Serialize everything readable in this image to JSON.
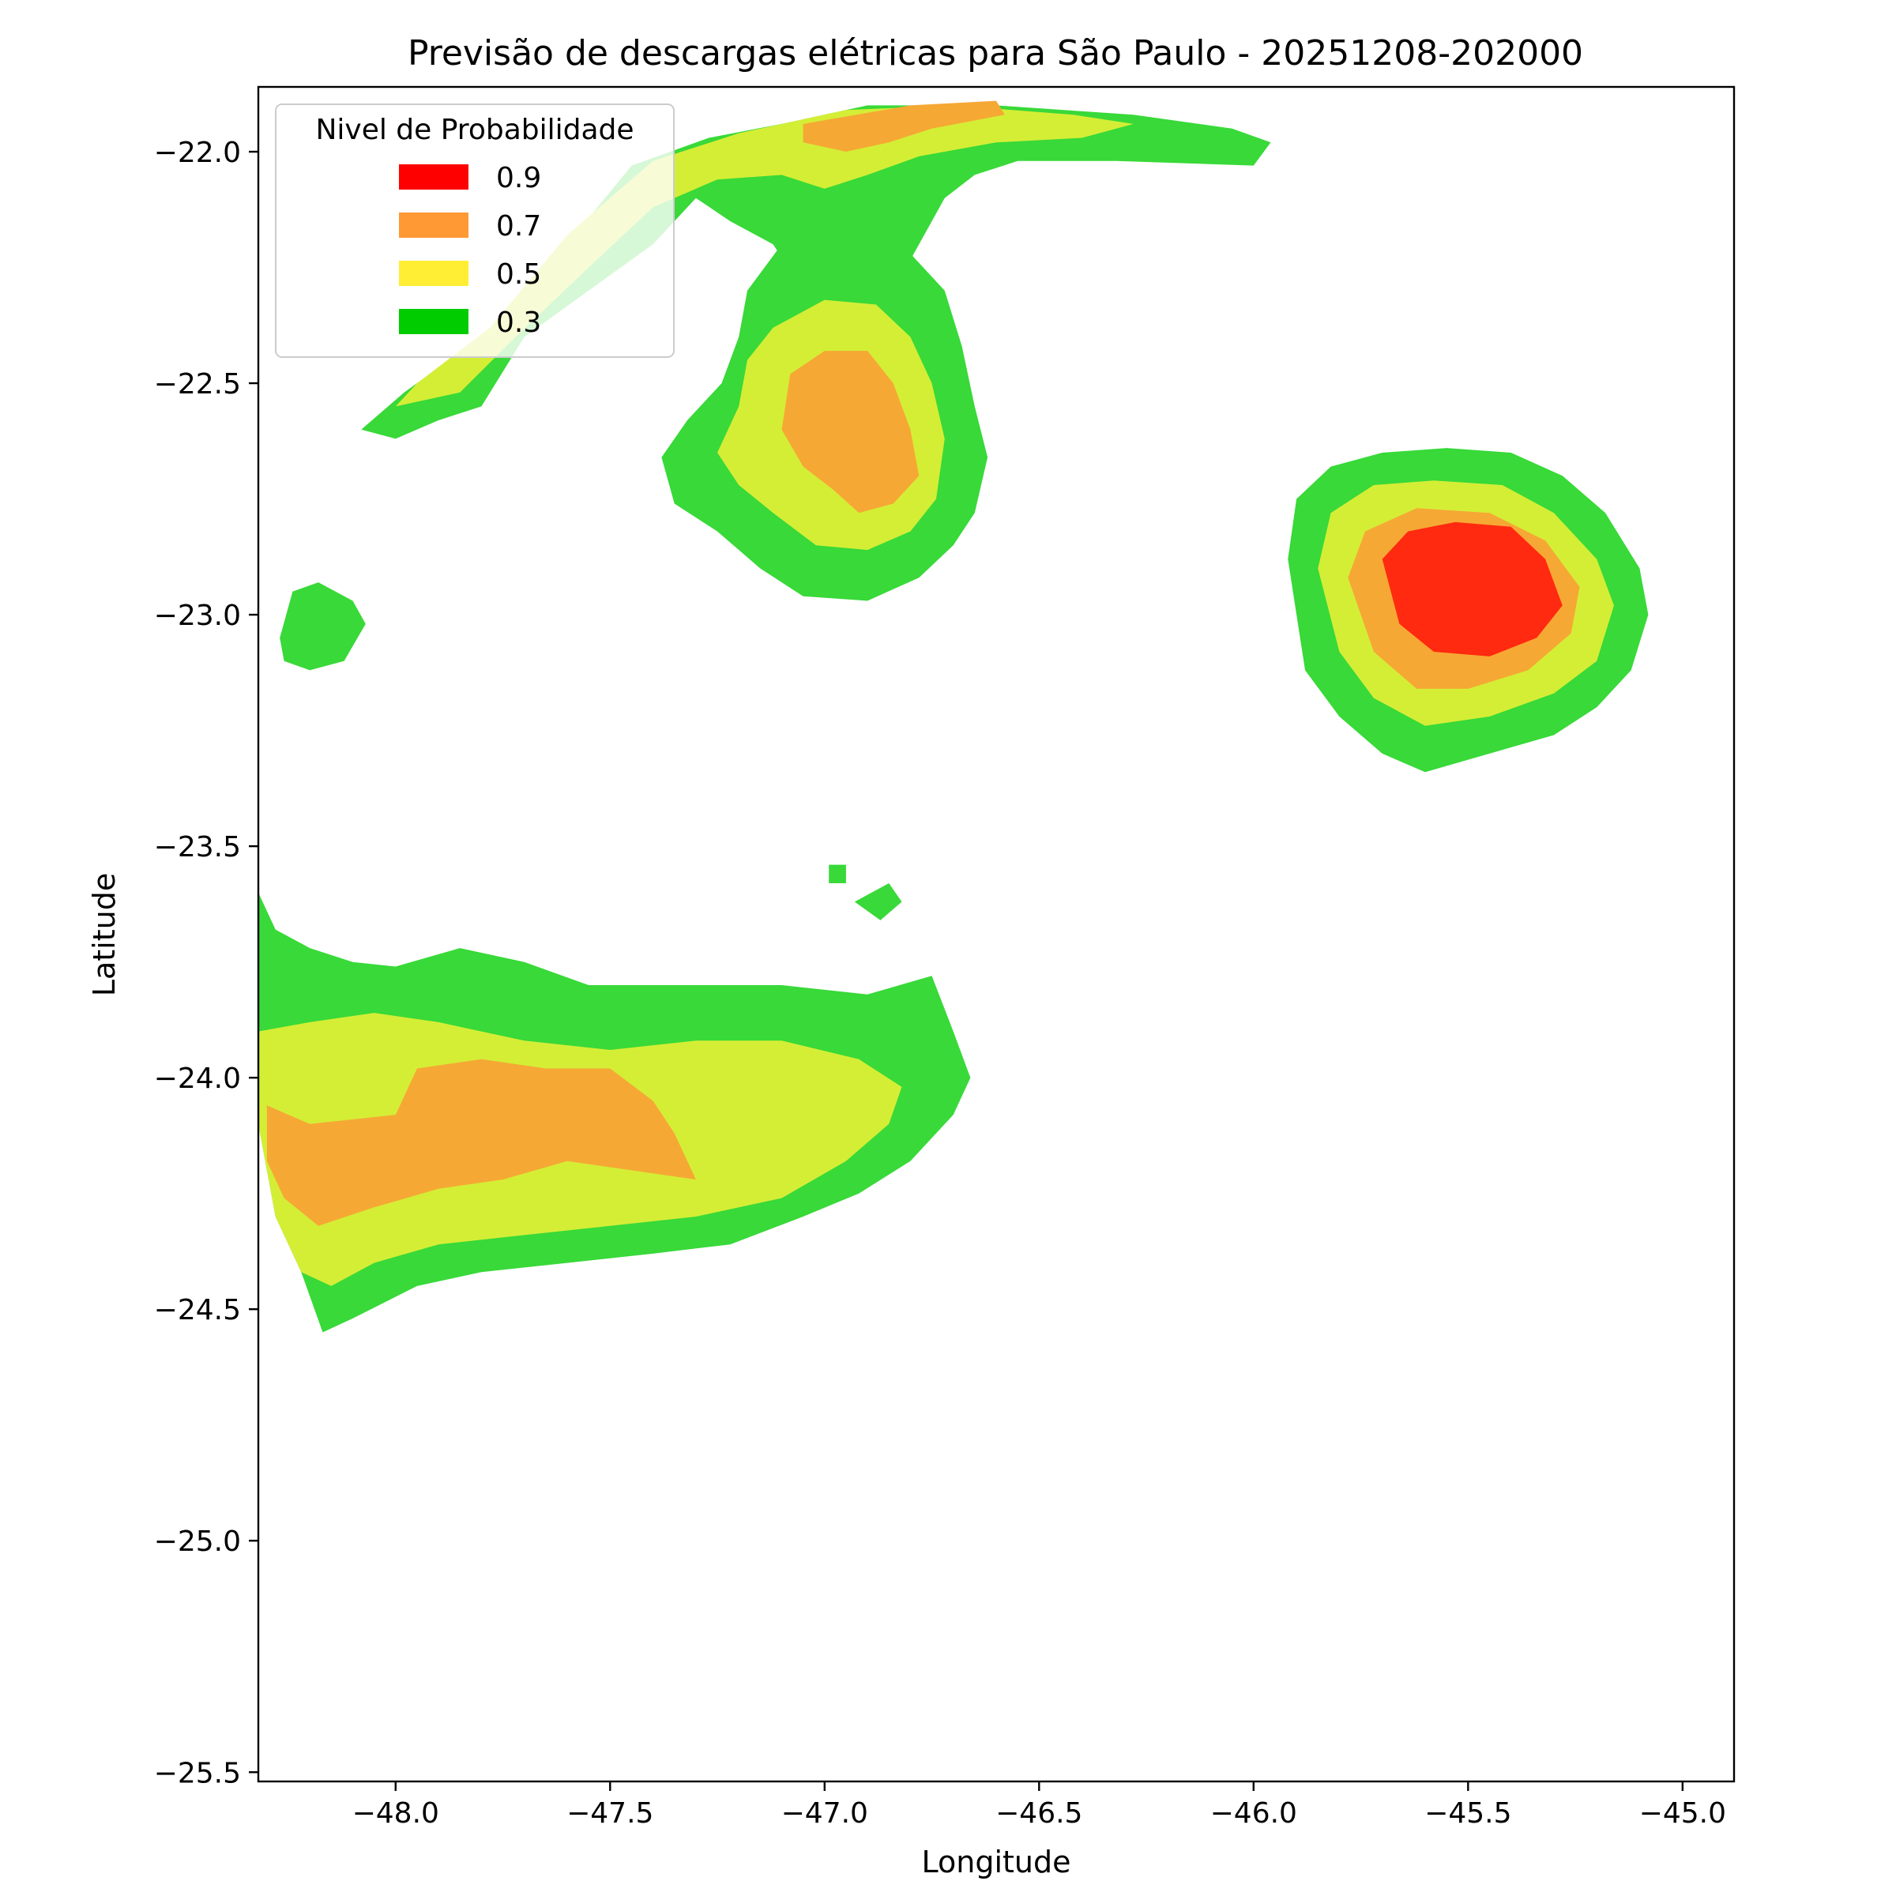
{
  "chart_data": {
    "type": "filled_contour_map",
    "title": "Previsão de descargas elétricas para São Paulo - 20251208-202000",
    "xlabel": "Longitude",
    "ylabel": "Latitude",
    "xlim": [
      -48.32,
      -44.88
    ],
    "ylim": [
      -25.52,
      -21.86
    ],
    "xticks": [
      -48.0,
      -47.5,
      -47.0,
      -46.5,
      -46.0,
      -45.5,
      -45.0
    ],
    "xtick_labels": [
      "−48.0",
      "−47.5",
      "−47.0",
      "−46.5",
      "−46.0",
      "−45.5",
      "−45.0"
    ],
    "yticks": [
      -22.0,
      -22.5,
      -23.0,
      -23.5,
      -24.0,
      -24.5,
      -25.0,
      -25.5
    ],
    "ytick_labels": [
      "−22.0",
      "−22.5",
      "−23.0",
      "−23.5",
      "−24.0",
      "−24.5",
      "−25.0",
      "−25.5"
    ],
    "legend": {
      "title": "Nivel de Probabilidade",
      "placement": "upper-left",
      "entries": [
        {
          "label": "0.9",
          "color": "#ff0000"
        },
        {
          "label": "0.7",
          "color": "#ff9933"
        },
        {
          "label": "0.5",
          "color": "#ffee33"
        },
        {
          "label": "0.3",
          "color": "#00cc00"
        }
      ]
    },
    "fill_colors": {
      "0.3": "#38d938",
      "0.5": "#d4ee36",
      "0.7": "#f6a834",
      "0.9": "#ff2a10"
    },
    "regions": [
      {
        "name": "northwest-arc",
        "level": 0.3,
        "points": [
          [
            -48.08,
            -22.6
          ],
          [
            -47.98,
            -22.52
          ],
          [
            -47.8,
            -22.4
          ],
          [
            -47.6,
            -22.2
          ],
          [
            -47.45,
            -22.03
          ],
          [
            -47.27,
            -21.97
          ],
          [
            -47.1,
            -21.94
          ],
          [
            -46.9,
            -21.9
          ],
          [
            -46.6,
            -21.9
          ],
          [
            -46.28,
            -21.92
          ],
          [
            -46.05,
            -21.95
          ],
          [
            -45.96,
            -21.98
          ],
          [
            -46.0,
            -22.03
          ],
          [
            -46.32,
            -22.02
          ],
          [
            -46.55,
            -22.02
          ],
          [
            -46.65,
            -22.05
          ],
          [
            -46.72,
            -22.1
          ],
          [
            -46.78,
            -22.2
          ],
          [
            -46.84,
            -22.3
          ],
          [
            -46.92,
            -22.35
          ],
          [
            -47.05,
            -22.3
          ],
          [
            -47.12,
            -22.2
          ],
          [
            -47.22,
            -22.15
          ],
          [
            -47.3,
            -22.1
          ],
          [
            -47.4,
            -22.2
          ],
          [
            -47.55,
            -22.3
          ],
          [
            -47.7,
            -22.4
          ],
          [
            -47.8,
            -22.55
          ],
          [
            -47.9,
            -22.58
          ],
          [
            -48.0,
            -22.62
          ]
        ]
      },
      {
        "name": "northwest-arc",
        "level": 0.5,
        "points": [
          [
            -48.0,
            -22.55
          ],
          [
            -47.95,
            -22.5
          ],
          [
            -47.78,
            -22.38
          ],
          [
            -47.6,
            -22.18
          ],
          [
            -47.4,
            -22.02
          ],
          [
            -47.2,
            -21.96
          ],
          [
            -46.95,
            -21.91
          ],
          [
            -46.7,
            -21.9
          ],
          [
            -46.42,
            -21.92
          ],
          [
            -46.28,
            -21.94
          ],
          [
            -46.4,
            -21.97
          ],
          [
            -46.6,
            -21.98
          ],
          [
            -46.78,
            -22.01
          ],
          [
            -46.9,
            -22.05
          ],
          [
            -47.0,
            -22.08
          ],
          [
            -47.1,
            -22.05
          ],
          [
            -47.25,
            -22.06
          ],
          [
            -47.4,
            -22.12
          ],
          [
            -47.55,
            -22.25
          ],
          [
            -47.72,
            -22.4
          ],
          [
            -47.85,
            -22.52
          ]
        ]
      },
      {
        "name": "northwest-arc",
        "level": 0.7,
        "points": [
          [
            -47.05,
            -21.94
          ],
          [
            -46.8,
            -21.9
          ],
          [
            -46.6,
            -21.89
          ],
          [
            -46.58,
            -21.92
          ],
          [
            -46.75,
            -21.95
          ],
          [
            -46.85,
            -21.98
          ],
          [
            -46.95,
            -22.0
          ],
          [
            -47.05,
            -21.98
          ]
        ]
      },
      {
        "name": "north-center-cell",
        "level": 0.3,
        "points": [
          [
            -47.38,
            -22.66
          ],
          [
            -47.32,
            -22.58
          ],
          [
            -47.24,
            -22.5
          ],
          [
            -47.2,
            -22.4
          ],
          [
            -47.18,
            -22.3
          ],
          [
            -47.1,
            -22.2
          ],
          [
            -46.95,
            -22.18
          ],
          [
            -46.8,
            -22.22
          ],
          [
            -46.72,
            -22.3
          ],
          [
            -46.68,
            -22.42
          ],
          [
            -46.65,
            -22.55
          ],
          [
            -46.62,
            -22.66
          ],
          [
            -46.65,
            -22.78
          ],
          [
            -46.7,
            -22.85
          ],
          [
            -46.78,
            -22.92
          ],
          [
            -46.9,
            -22.97
          ],
          [
            -47.05,
            -22.96
          ],
          [
            -47.15,
            -22.9
          ],
          [
            -47.25,
            -22.82
          ],
          [
            -47.35,
            -22.76
          ]
        ]
      },
      {
        "name": "north-center-cell",
        "level": 0.5,
        "points": [
          [
            -47.25,
            -22.65
          ],
          [
            -47.2,
            -22.55
          ],
          [
            -47.18,
            -22.45
          ],
          [
            -47.12,
            -22.38
          ],
          [
            -47.0,
            -22.32
          ],
          [
            -46.88,
            -22.33
          ],
          [
            -46.8,
            -22.4
          ],
          [
            -46.75,
            -22.5
          ],
          [
            -46.72,
            -22.62
          ],
          [
            -46.74,
            -22.75
          ],
          [
            -46.8,
            -22.82
          ],
          [
            -46.9,
            -22.86
          ],
          [
            -47.02,
            -22.85
          ],
          [
            -47.12,
            -22.78
          ],
          [
            -47.2,
            -22.72
          ]
        ]
      },
      {
        "name": "north-center-cell",
        "level": 0.7,
        "points": [
          [
            -47.1,
            -22.6
          ],
          [
            -47.08,
            -22.48
          ],
          [
            -47.0,
            -22.43
          ],
          [
            -46.9,
            -22.43
          ],
          [
            -46.84,
            -22.5
          ],
          [
            -46.8,
            -22.6
          ],
          [
            -46.78,
            -22.7
          ],
          [
            -46.84,
            -22.76
          ],
          [
            -46.92,
            -22.78
          ],
          [
            -46.98,
            -22.73
          ],
          [
            -47.05,
            -22.68
          ]
        ]
      },
      {
        "name": "east-cell",
        "level": 0.3,
        "points": [
          [
            -45.92,
            -22.88
          ],
          [
            -45.9,
            -22.75
          ],
          [
            -45.82,
            -22.68
          ],
          [
            -45.7,
            -22.65
          ],
          [
            -45.55,
            -22.64
          ],
          [
            -45.4,
            -22.65
          ],
          [
            -45.28,
            -22.7
          ],
          [
            -45.18,
            -22.78
          ],
          [
            -45.1,
            -22.9
          ],
          [
            -45.08,
            -23.0
          ],
          [
            -45.12,
            -23.12
          ],
          [
            -45.2,
            -23.2
          ],
          [
            -45.3,
            -23.26
          ],
          [
            -45.45,
            -23.3
          ],
          [
            -45.6,
            -23.34
          ],
          [
            -45.7,
            -23.3
          ],
          [
            -45.8,
            -23.22
          ],
          [
            -45.88,
            -23.12
          ]
        ]
      },
      {
        "name": "east-cell",
        "level": 0.5,
        "points": [
          [
            -45.85,
            -22.9
          ],
          [
            -45.82,
            -22.78
          ],
          [
            -45.72,
            -22.72
          ],
          [
            -45.58,
            -22.71
          ],
          [
            -45.42,
            -22.72
          ],
          [
            -45.3,
            -22.78
          ],
          [
            -45.2,
            -22.88
          ],
          [
            -45.16,
            -22.98
          ],
          [
            -45.2,
            -23.1
          ],
          [
            -45.3,
            -23.17
          ],
          [
            -45.45,
            -23.22
          ],
          [
            -45.6,
            -23.24
          ],
          [
            -45.72,
            -23.18
          ],
          [
            -45.8,
            -23.08
          ]
        ]
      },
      {
        "name": "east-cell",
        "level": 0.7,
        "points": [
          [
            -45.78,
            -22.92
          ],
          [
            -45.74,
            -22.82
          ],
          [
            -45.62,
            -22.77
          ],
          [
            -45.45,
            -22.78
          ],
          [
            -45.32,
            -22.84
          ],
          [
            -45.24,
            -22.94
          ],
          [
            -45.26,
            -23.04
          ],
          [
            -45.36,
            -23.12
          ],
          [
            -45.5,
            -23.16
          ],
          [
            -45.62,
            -23.16
          ],
          [
            -45.72,
            -23.08
          ]
        ]
      },
      {
        "name": "east-cell",
        "level": 0.9,
        "points": [
          [
            -45.7,
            -22.88
          ],
          [
            -45.64,
            -22.82
          ],
          [
            -45.53,
            -22.8
          ],
          [
            -45.4,
            -22.81
          ],
          [
            -45.32,
            -22.88
          ],
          [
            -45.28,
            -22.98
          ],
          [
            -45.34,
            -23.05
          ],
          [
            -45.45,
            -23.09
          ],
          [
            -45.58,
            -23.08
          ],
          [
            -45.66,
            -23.02
          ]
        ]
      },
      {
        "name": "west-blob",
        "level": 0.3,
        "points": [
          [
            -48.27,
            -23.05
          ],
          [
            -48.24,
            -22.95
          ],
          [
            -48.18,
            -22.93
          ],
          [
            -48.1,
            -22.97
          ],
          [
            -48.07,
            -23.02
          ],
          [
            -48.12,
            -23.1
          ],
          [
            -48.2,
            -23.12
          ],
          [
            -48.26,
            -23.1
          ]
        ]
      },
      {
        "name": "southwest-band",
        "level": 0.3,
        "points": [
          [
            -48.32,
            -23.6
          ],
          [
            -48.28,
            -23.68
          ],
          [
            -48.2,
            -23.72
          ],
          [
            -48.1,
            -23.75
          ],
          [
            -48.0,
            -23.76
          ],
          [
            -47.85,
            -23.72
          ],
          [
            -47.7,
            -23.75
          ],
          [
            -47.55,
            -23.8
          ],
          [
            -47.4,
            -23.8
          ],
          [
            -47.25,
            -23.8
          ],
          [
            -47.1,
            -23.8
          ],
          [
            -46.9,
            -23.82
          ],
          [
            -46.75,
            -23.78
          ],
          [
            -46.7,
            -23.9
          ],
          [
            -46.66,
            -24.0
          ],
          [
            -46.7,
            -24.08
          ],
          [
            -46.8,
            -24.18
          ],
          [
            -46.92,
            -24.25
          ],
          [
            -47.05,
            -24.3
          ],
          [
            -47.22,
            -24.36
          ],
          [
            -47.4,
            -24.38
          ],
          [
            -47.6,
            -24.4
          ],
          [
            -47.8,
            -24.42
          ],
          [
            -47.95,
            -24.45
          ],
          [
            -48.1,
            -24.52
          ],
          [
            -48.17,
            -24.55
          ],
          [
            -48.22,
            -24.42
          ],
          [
            -48.28,
            -24.3
          ],
          [
            -48.32,
            -24.1
          ]
        ]
      },
      {
        "name": "southwest-band",
        "level": 0.5,
        "points": [
          [
            -48.32,
            -23.9
          ],
          [
            -48.2,
            -23.88
          ],
          [
            -48.05,
            -23.86
          ],
          [
            -47.9,
            -23.88
          ],
          [
            -47.7,
            -23.92
          ],
          [
            -47.5,
            -23.94
          ],
          [
            -47.3,
            -23.92
          ],
          [
            -47.1,
            -23.92
          ],
          [
            -46.92,
            -23.96
          ],
          [
            -46.82,
            -24.02
          ],
          [
            -46.85,
            -24.1
          ],
          [
            -46.95,
            -24.18
          ],
          [
            -47.1,
            -24.26
          ],
          [
            -47.3,
            -24.3
          ],
          [
            -47.5,
            -24.32
          ],
          [
            -47.7,
            -24.34
          ],
          [
            -47.9,
            -24.36
          ],
          [
            -48.05,
            -24.4
          ],
          [
            -48.15,
            -24.45
          ],
          [
            -48.22,
            -24.42
          ],
          [
            -48.28,
            -24.3
          ],
          [
            -48.32,
            -24.1
          ]
        ]
      },
      {
        "name": "southwest-band",
        "level": 0.7,
        "points": [
          [
            -48.3,
            -24.06
          ],
          [
            -48.2,
            -24.1
          ],
          [
            -48.0,
            -24.08
          ],
          [
            -47.95,
            -23.98
          ],
          [
            -47.8,
            -23.96
          ],
          [
            -47.65,
            -23.98
          ],
          [
            -47.5,
            -23.98
          ],
          [
            -47.4,
            -24.05
          ],
          [
            -47.35,
            -24.12
          ],
          [
            -47.3,
            -24.22
          ],
          [
            -47.45,
            -24.2
          ],
          [
            -47.6,
            -24.18
          ],
          [
            -47.75,
            -24.22
          ],
          [
            -47.9,
            -24.24
          ],
          [
            -48.05,
            -24.28
          ],
          [
            -48.18,
            -24.32
          ],
          [
            -48.26,
            -24.26
          ],
          [
            -48.3,
            -24.18
          ]
        ]
      },
      {
        "name": "small-dot",
        "level": 0.3,
        "points": [
          [
            -46.99,
            -23.54
          ],
          [
            -46.95,
            -23.54
          ],
          [
            -46.95,
            -23.58
          ],
          [
            -46.99,
            -23.58
          ]
        ]
      },
      {
        "name": "small-patch",
        "level": 0.3,
        "points": [
          [
            -46.93,
            -23.62
          ],
          [
            -46.85,
            -23.58
          ],
          [
            -46.82,
            -23.62
          ],
          [
            -46.87,
            -23.66
          ]
        ]
      }
    ]
  }
}
